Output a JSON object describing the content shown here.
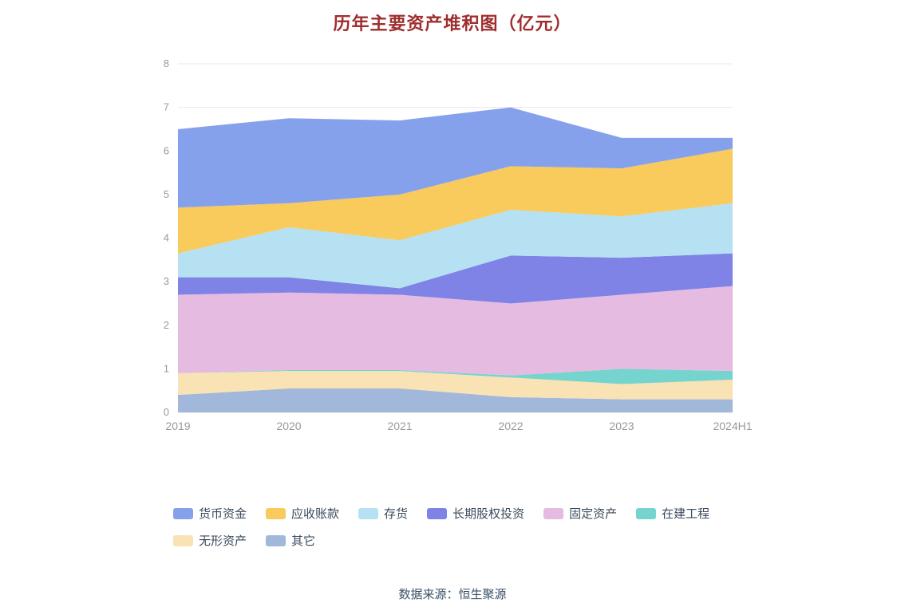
{
  "title": "历年主要资产堆积图（亿元）",
  "source": "数据来源：恒生聚源",
  "colors": {
    "title": "#A02E2E",
    "axis_label": "#999999",
    "grid_line": "#E8E8E8",
    "axis_line": "#DDDDDD",
    "legend_text": "#3A4B5C",
    "source_text": "#3A5068"
  },
  "chart_data": {
    "type": "area",
    "stacked": true,
    "title": "历年主要资产堆积图（亿元）",
    "xlabel": "",
    "ylabel": "",
    "x": [
      "2019",
      "2020",
      "2021",
      "2022",
      "2023",
      "2024H1"
    ],
    "ylim": [
      0,
      8
    ],
    "ytick_interval": 1,
    "grid": true,
    "legend_position": "bottom",
    "legend_order": [
      "货币资金",
      "应收账款",
      "存货",
      "长期股权投资",
      "固定资产",
      "在建工程",
      "无形资产",
      "其它"
    ],
    "series": [
      {
        "name": "其它",
        "color": "#A2B8DA",
        "values": [
          0.4,
          0.55,
          0.55,
          0.35,
          0.3,
          0.3
        ]
      },
      {
        "name": "无形资产",
        "color": "#F9E2B4",
        "values": [
          0.5,
          0.4,
          0.4,
          0.45,
          0.35,
          0.45
        ]
      },
      {
        "name": "在建工程",
        "color": "#76D4CE",
        "values": [
          0.0,
          0.02,
          0.02,
          0.05,
          0.35,
          0.2
        ]
      },
      {
        "name": "固定资产",
        "color": "#E5BBE1",
        "values": [
          1.8,
          1.78,
          1.73,
          1.65,
          1.7,
          1.95
        ]
      },
      {
        "name": "长期股权投资",
        "color": "#7F83E6",
        "values": [
          0.4,
          0.35,
          0.15,
          1.1,
          0.85,
          0.75
        ]
      },
      {
        "name": "存货",
        "color": "#B5E1F2",
        "values": [
          0.55,
          1.15,
          1.1,
          1.05,
          0.95,
          1.15
        ]
      },
      {
        "name": "应收账款",
        "color": "#F9CA5C",
        "values": [
          1.05,
          0.55,
          1.05,
          1.0,
          1.1,
          1.25
        ]
      },
      {
        "name": "货币资金",
        "color": "#86A1EC",
        "values": [
          1.8,
          1.95,
          1.7,
          1.35,
          0.7,
          0.25
        ]
      }
    ]
  }
}
